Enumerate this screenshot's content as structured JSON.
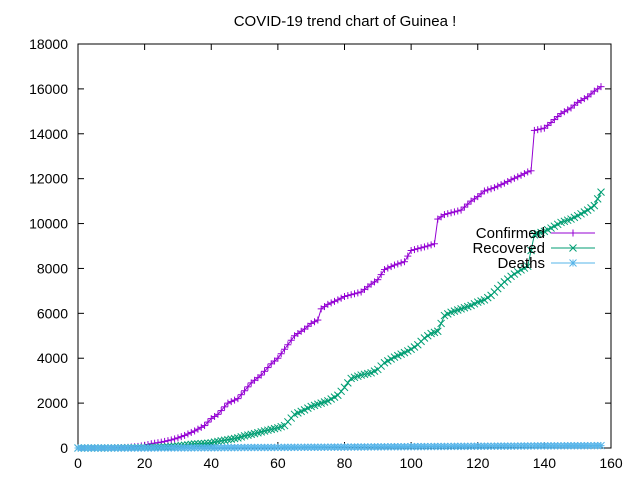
{
  "chart_data": {
    "type": "line",
    "title": "COVID-19 trend chart of Guinea !",
    "xlabel": "",
    "ylabel": "",
    "xlim": [
      0,
      160
    ],
    "ylim": [
      0,
      18000
    ],
    "xticks": [
      0,
      20,
      40,
      60,
      80,
      100,
      120,
      140,
      160
    ],
    "yticks": [
      0,
      2000,
      4000,
      6000,
      8000,
      10000,
      12000,
      14000,
      16000,
      18000
    ],
    "grid": false,
    "legend_position": "right",
    "series": [
      {
        "name": "Confirmed",
        "color": "#9400d3",
        "marker": "plus",
        "points": [
          [
            0,
            0
          ],
          [
            5,
            2
          ],
          [
            10,
            4
          ],
          [
            12,
            16
          ],
          [
            15,
            30
          ],
          [
            18,
            70
          ],
          [
            20,
            120
          ],
          [
            22,
            190
          ],
          [
            25,
            260
          ],
          [
            28,
            360
          ],
          [
            30,
            450
          ],
          [
            32,
            560
          ],
          [
            35,
            760
          ],
          [
            38,
            1000
          ],
          [
            40,
            1310
          ],
          [
            42,
            1500
          ],
          [
            45,
            2000
          ],
          [
            48,
            2200
          ],
          [
            50,
            2550
          ],
          [
            52,
            2900
          ],
          [
            55,
            3250
          ],
          [
            58,
            3750
          ],
          [
            60,
            4000
          ],
          [
            62,
            4400
          ],
          [
            65,
            5000
          ],
          [
            68,
            5300
          ],
          [
            70,
            5550
          ],
          [
            72,
            5700
          ],
          [
            73,
            6200
          ],
          [
            75,
            6400
          ],
          [
            78,
            6600
          ],
          [
            80,
            6750
          ],
          [
            85,
            6950
          ],
          [
            88,
            7300
          ],
          [
            90,
            7500
          ],
          [
            92,
            7950
          ],
          [
            95,
            8150
          ],
          [
            98,
            8300
          ],
          [
            100,
            8800
          ],
          [
            105,
            9000
          ],
          [
            107,
            9100
          ],
          [
            108,
            10200
          ],
          [
            110,
            10400
          ],
          [
            115,
            10600
          ],
          [
            118,
            11000
          ],
          [
            120,
            11200
          ],
          [
            122,
            11450
          ],
          [
            125,
            11600
          ],
          [
            128,
            11800
          ],
          [
            130,
            11950
          ],
          [
            133,
            12150
          ],
          [
            135,
            12300
          ],
          [
            136,
            12350
          ],
          [
            137,
            14150
          ],
          [
            140,
            14250
          ],
          [
            142,
            14500
          ],
          [
            145,
            14900
          ],
          [
            148,
            15150
          ],
          [
            150,
            15400
          ],
          [
            153,
            15650
          ],
          [
            155,
            15900
          ],
          [
            157,
            16100
          ]
        ]
      },
      {
        "name": "Recovered",
        "color": "#009e73",
        "marker": "cross",
        "points": [
          [
            0,
            0
          ],
          [
            10,
            2
          ],
          [
            15,
            10
          ],
          [
            20,
            20
          ],
          [
            25,
            40
          ],
          [
            28,
            60
          ],
          [
            30,
            90
          ],
          [
            33,
            140
          ],
          [
            35,
            180
          ],
          [
            38,
            200
          ],
          [
            40,
            230
          ],
          [
            43,
            320
          ],
          [
            45,
            370
          ],
          [
            48,
            450
          ],
          [
            50,
            540
          ],
          [
            53,
            640
          ],
          [
            55,
            720
          ],
          [
            58,
            830
          ],
          [
            60,
            900
          ],
          [
            62,
            1000
          ],
          [
            65,
            1500
          ],
          [
            68,
            1700
          ],
          [
            70,
            1850
          ],
          [
            72,
            1950
          ],
          [
            75,
            2100
          ],
          [
            78,
            2350
          ],
          [
            80,
            2700
          ],
          [
            82,
            3100
          ],
          [
            85,
            3250
          ],
          [
            88,
            3350
          ],
          [
            90,
            3500
          ],
          [
            92,
            3800
          ],
          [
            95,
            4050
          ],
          [
            98,
            4250
          ],
          [
            100,
            4400
          ],
          [
            102,
            4600
          ],
          [
            104,
            4900
          ],
          [
            106,
            5100
          ],
          [
            108,
            5200
          ],
          [
            110,
            5900
          ],
          [
            112,
            6050
          ],
          [
            115,
            6200
          ],
          [
            118,
            6350
          ],
          [
            120,
            6500
          ],
          [
            122,
            6600
          ],
          [
            124,
            6800
          ],
          [
            126,
            7100
          ],
          [
            128,
            7400
          ],
          [
            130,
            7650
          ],
          [
            132,
            7850
          ],
          [
            135,
            8100
          ],
          [
            137,
            9500
          ],
          [
            140,
            9650
          ],
          [
            142,
            9800
          ],
          [
            145,
            10050
          ],
          [
            148,
            10200
          ],
          [
            150,
            10350
          ],
          [
            153,
            10600
          ],
          [
            155,
            10800
          ],
          [
            157,
            11400
          ]
        ]
      },
      {
        "name": "Deaths",
        "color": "#56b4e9",
        "marker": "star",
        "points": [
          [
            0,
            0
          ],
          [
            20,
            0
          ],
          [
            30,
            5
          ],
          [
            40,
            10
          ],
          [
            50,
            20
          ],
          [
            60,
            25
          ],
          [
            70,
            33
          ],
          [
            80,
            40
          ],
          [
            90,
            50
          ],
          [
            100,
            60
          ],
          [
            110,
            68
          ],
          [
            120,
            78
          ],
          [
            130,
            85
          ],
          [
            140,
            95
          ],
          [
            150,
            100
          ],
          [
            157,
            105
          ]
        ]
      }
    ]
  }
}
